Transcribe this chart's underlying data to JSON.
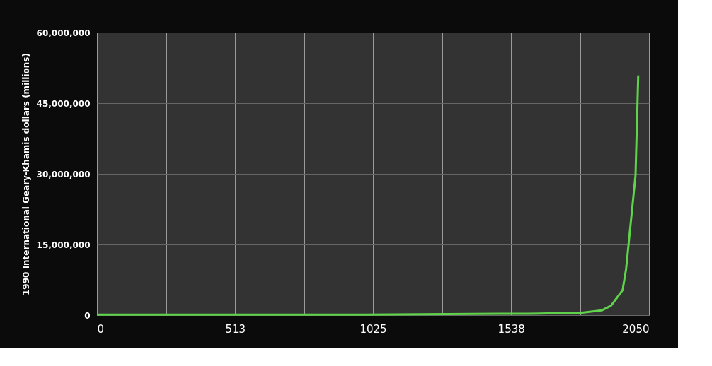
{
  "chart_data": {
    "type": "line",
    "ylabel": "1990 International Geary-Khamis dollars (millions)",
    "x": [
      0,
      500,
      1000,
      1500,
      1600,
      1700,
      1796,
      1874,
      1909,
      1952,
      1965,
      1978,
      2000,
      2010
    ],
    "series": [
      {
        "color": "#5fd34a",
        "values": [
          100000,
          100000,
          100000,
          300000,
          300000,
          400000,
          500000,
          1000000,
          2000000,
          5300000,
          9800000,
          17200000,
          29700000,
          50900000
        ]
      }
    ],
    "xlim": [
      0,
      2050
    ],
    "xticks": [
      0,
      {
        "value": 256.25,
        "label": null
      },
      513,
      {
        "value": 768.75,
        "label": null
      },
      1025,
      {
        "value": 1281.25,
        "label": null
      },
      1538,
      {
        "value": 1793.75,
        "label": null
      },
      2050
    ],
    "ylim": [
      0,
      60000000
    ],
    "yticks": [
      0,
      {
        "value": 15000000,
        "label": "15,000,000"
      },
      {
        "value": 30000000,
        "label": "30,000,000"
      },
      {
        "value": 45000000,
        "label": "45,000,000"
      },
      {
        "value": 60000000,
        "label": "60,000,000"
      }
    ],
    "grid": true,
    "marker": "none",
    "line_style": "solid"
  }
}
